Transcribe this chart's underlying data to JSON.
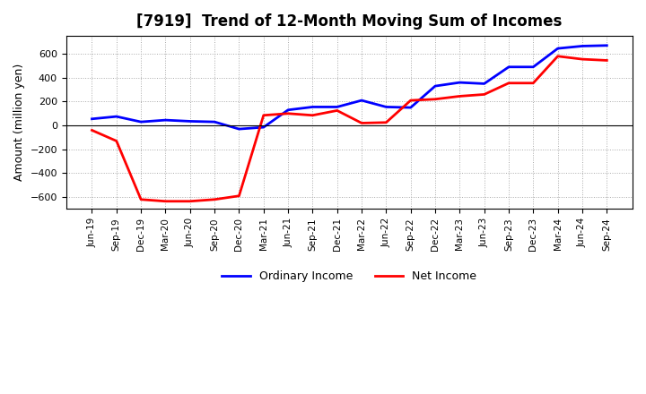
{
  "title": "[7919]  Trend of 12-Month Moving Sum of Incomes",
  "ylabel": "Amount (million yen)",
  "x_labels": [
    "Jun-19",
    "Sep-19",
    "Dec-19",
    "Mar-20",
    "Jun-20",
    "Sep-20",
    "Dec-20",
    "Mar-21",
    "Jun-21",
    "Sep-21",
    "Dec-21",
    "Mar-22",
    "Jun-22",
    "Sep-22",
    "Dec-22",
    "Mar-23",
    "Jun-23",
    "Sep-23",
    "Dec-23",
    "Mar-24",
    "Jun-24",
    "Sep-24"
  ],
  "ordinary_income": [
    55,
    75,
    30,
    45,
    35,
    30,
    -30,
    -15,
    130,
    155,
    155,
    210,
    155,
    150,
    330,
    360,
    350,
    490,
    490,
    645,
    665,
    670
  ],
  "net_income": [
    -40,
    -130,
    -620,
    -635,
    -635,
    -620,
    -590,
    85,
    100,
    85,
    125,
    20,
    25,
    210,
    220,
    245,
    260,
    355,
    355,
    580,
    555,
    545
  ],
  "ordinary_income_color": "#0000ff",
  "net_income_color": "#ff0000",
  "background_color": "#ffffff",
  "plot_bg_color": "#ffffff",
  "grid_color": "#aaaaaa",
  "ylim": [
    -700,
    750
  ],
  "yticks": [
    -600,
    -400,
    -200,
    0,
    200,
    400,
    600
  ],
  "legend_labels": [
    "Ordinary Income",
    "Net Income"
  ],
  "line_width": 2.0
}
